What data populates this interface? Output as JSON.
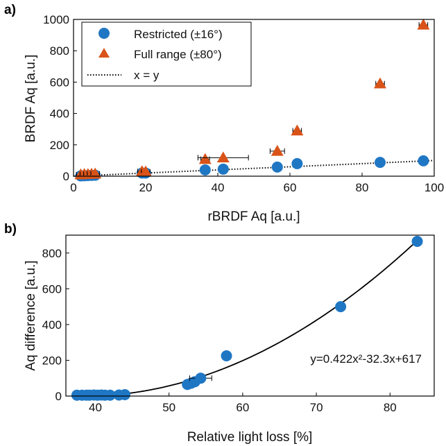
{
  "panels": [
    "a)",
    "b)"
  ],
  "chart_data": [
    {
      "type": "scatter",
      "xlabel": "rBRDF Aq [a.u.]",
      "ylabel": "BRDF Aq [a.u.]",
      "xlim": [
        0,
        100
      ],
      "ylim": [
        0,
        1000
      ],
      "xticks": [
        0,
        20,
        40,
        60,
        80,
        100
      ],
      "yticks": [
        0,
        200,
        400,
        600,
        800,
        1000
      ],
      "legend_position": "top-left",
      "series": [
        {
          "name": "Restricted (±16°)",
          "marker": "circle",
          "color": "#1f77c4",
          "x": [
            2,
            3,
            4,
            5,
            6,
            19,
            20,
            36.5,
            41.5,
            56.5,
            62,
            85,
            97
          ],
          "y": [
            2,
            3,
            4,
            5,
            6,
            20,
            20,
            40,
            45,
            58,
            80,
            88,
            98
          ]
        },
        {
          "name": "Full range (±80°)",
          "marker": "triangle",
          "color": "#d95319",
          "x": [
            2,
            3,
            4,
            5,
            6,
            19,
            20,
            36.5,
            41.5,
            56.5,
            62,
            85,
            97
          ],
          "y": [
            10,
            12,
            12,
            14,
            15,
            30,
            28,
            108,
            118,
            160,
            290,
            590,
            965
          ],
          "xerr": [
            0,
            0,
            0,
            0,
            0,
            0,
            0,
            0,
            7,
            2,
            0,
            0,
            0
          ],
          "yerr": [
            0,
            0,
            0,
            0,
            0,
            0,
            0,
            0,
            0,
            0,
            0,
            0,
            0
          ]
        },
        {
          "name": "x = y",
          "style": "dotted",
          "color": "#000000",
          "x": [
            0,
            100
          ],
          "y": [
            0,
            100
          ]
        }
      ]
    },
    {
      "type": "scatter",
      "xlabel": "Relative light loss [%]",
      "ylabel": "Aq difference [a.u.]",
      "xlim": [
        36,
        86
      ],
      "ylim": [
        0,
        900
      ],
      "xticks": [
        40,
        50,
        60,
        70,
        80
      ],
      "yticks": [
        0,
        200,
        400,
        600,
        800
      ],
      "fit_equation": "y=0.422x²-32.3x+617",
      "fit": {
        "a": 0.422,
        "b": -32.3,
        "c": 617,
        "xmin": 37.5,
        "xmax": 84
      },
      "series": [
        {
          "name": "",
          "marker": "circle",
          "color": "#1f77c4",
          "x": [
            37.5,
            38.2,
            38.8,
            39.2,
            39.8,
            40.3,
            40.8,
            41.3,
            42.0,
            43.2,
            44.0,
            52.5,
            53.0,
            53.5,
            54.3,
            57.8,
            73.3,
            83.7
          ],
          "y": [
            5,
            5,
            5,
            5,
            6,
            5,
            6,
            5,
            5,
            6,
            8,
            65,
            72,
            80,
            100,
            225,
            500,
            865
          ],
          "xerr": [
            0,
            0,
            0,
            0,
            0,
            0,
            0,
            0,
            0,
            0,
            0,
            0,
            0,
            0,
            1.5,
            0,
            0,
            0
          ]
        }
      ]
    }
  ]
}
